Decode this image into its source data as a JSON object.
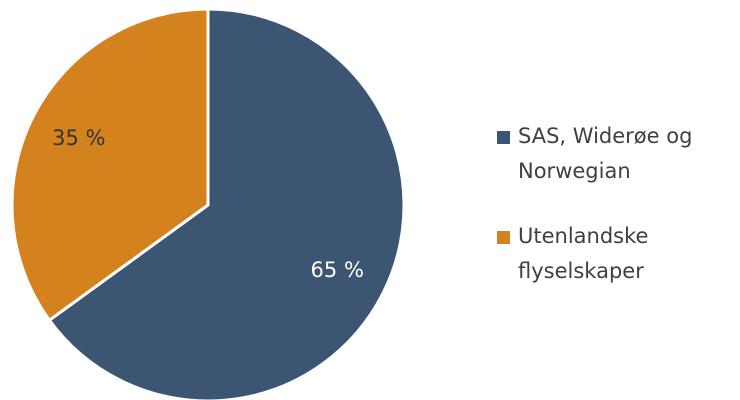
{
  "chart_data": {
    "type": "pie",
    "categories": [
      "SAS, Widerøe og Norwegian",
      "Utenlandske flyselskaper"
    ],
    "values": [
      65,
      35
    ],
    "value_labels": [
      "65 %",
      "35 %"
    ],
    "colors": [
      "#3b5572",
      "#d4821e"
    ],
    "legend": "right"
  }
}
